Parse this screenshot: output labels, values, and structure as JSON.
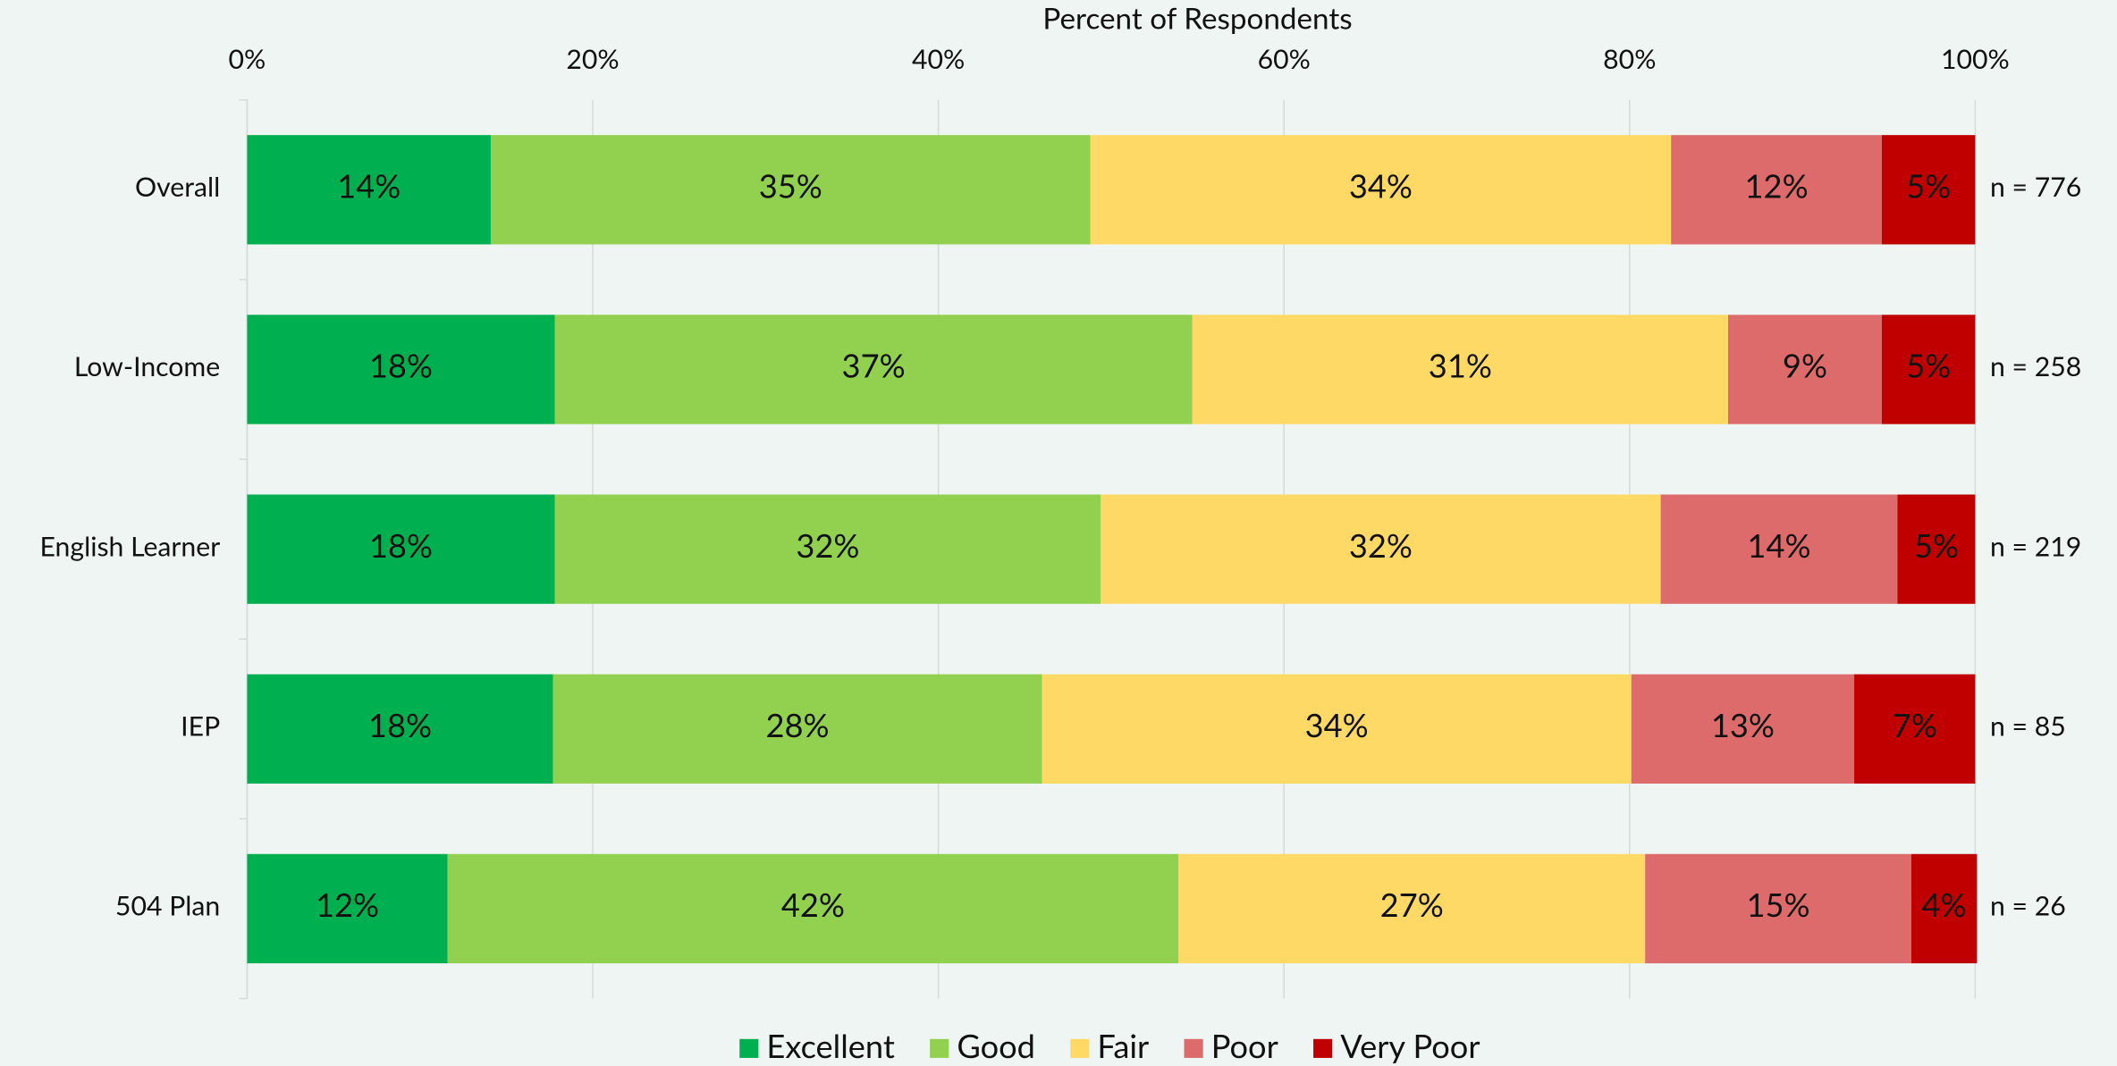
{
  "chart_data": {
    "type": "stacked-barh",
    "xlabel": "Percent of Respondents",
    "categories": [
      "Overall",
      "Low-Income",
      "English Learner",
      "IEP",
      "504 Plan"
    ],
    "series": [
      {
        "name": "Excellent",
        "color": "#00b050",
        "values": [
          14.1,
          17.8,
          17.8,
          17.7,
          11.6
        ],
        "value_labels": [
          "14%",
          "18%",
          "18%",
          "18%",
          "12%"
        ]
      },
      {
        "name": "Good",
        "color": "#92d050",
        "values": [
          34.7,
          36.9,
          31.6,
          28.3,
          42.3
        ],
        "value_labels": [
          "35%",
          "37%",
          "32%",
          "28%",
          "42%"
        ]
      },
      {
        "name": "Fair",
        "color": "#ffd966",
        "values": [
          33.6,
          31.0,
          32.4,
          34.1,
          27.0
        ],
        "value_labels": [
          "34%",
          "31%",
          "32%",
          "34%",
          "27%"
        ]
      },
      {
        "name": "Poor",
        "color": "#dd6b6b",
        "values": [
          12.2,
          8.9,
          13.7,
          12.9,
          15.4
        ],
        "value_labels": [
          "12%",
          "9%",
          "14%",
          "13%",
          "15%"
        ]
      },
      {
        "name": "Very Poor",
        "color": "#c00000",
        "values": [
          5.4,
          5.4,
          4.5,
          7.0,
          3.8
        ],
        "value_labels": [
          "5%",
          "5%",
          "5%",
          "7%",
          "4%"
        ]
      }
    ],
    "annotations": [
      "n = 776",
      "n = 258",
      "n = 219",
      "n = 85",
      "n = 26"
    ],
    "xlim": [
      0,
      100
    ],
    "xticks": [
      {
        "value": 0,
        "label": "0%"
      },
      {
        "value": 20,
        "label": "20%"
      },
      {
        "value": 40,
        "label": "40%"
      },
      {
        "value": 60,
        "label": "60%"
      },
      {
        "value": 80,
        "label": "80%"
      },
      {
        "value": 100,
        "label": "100%"
      }
    ],
    "grid": true,
    "legend": "bottom"
  }
}
